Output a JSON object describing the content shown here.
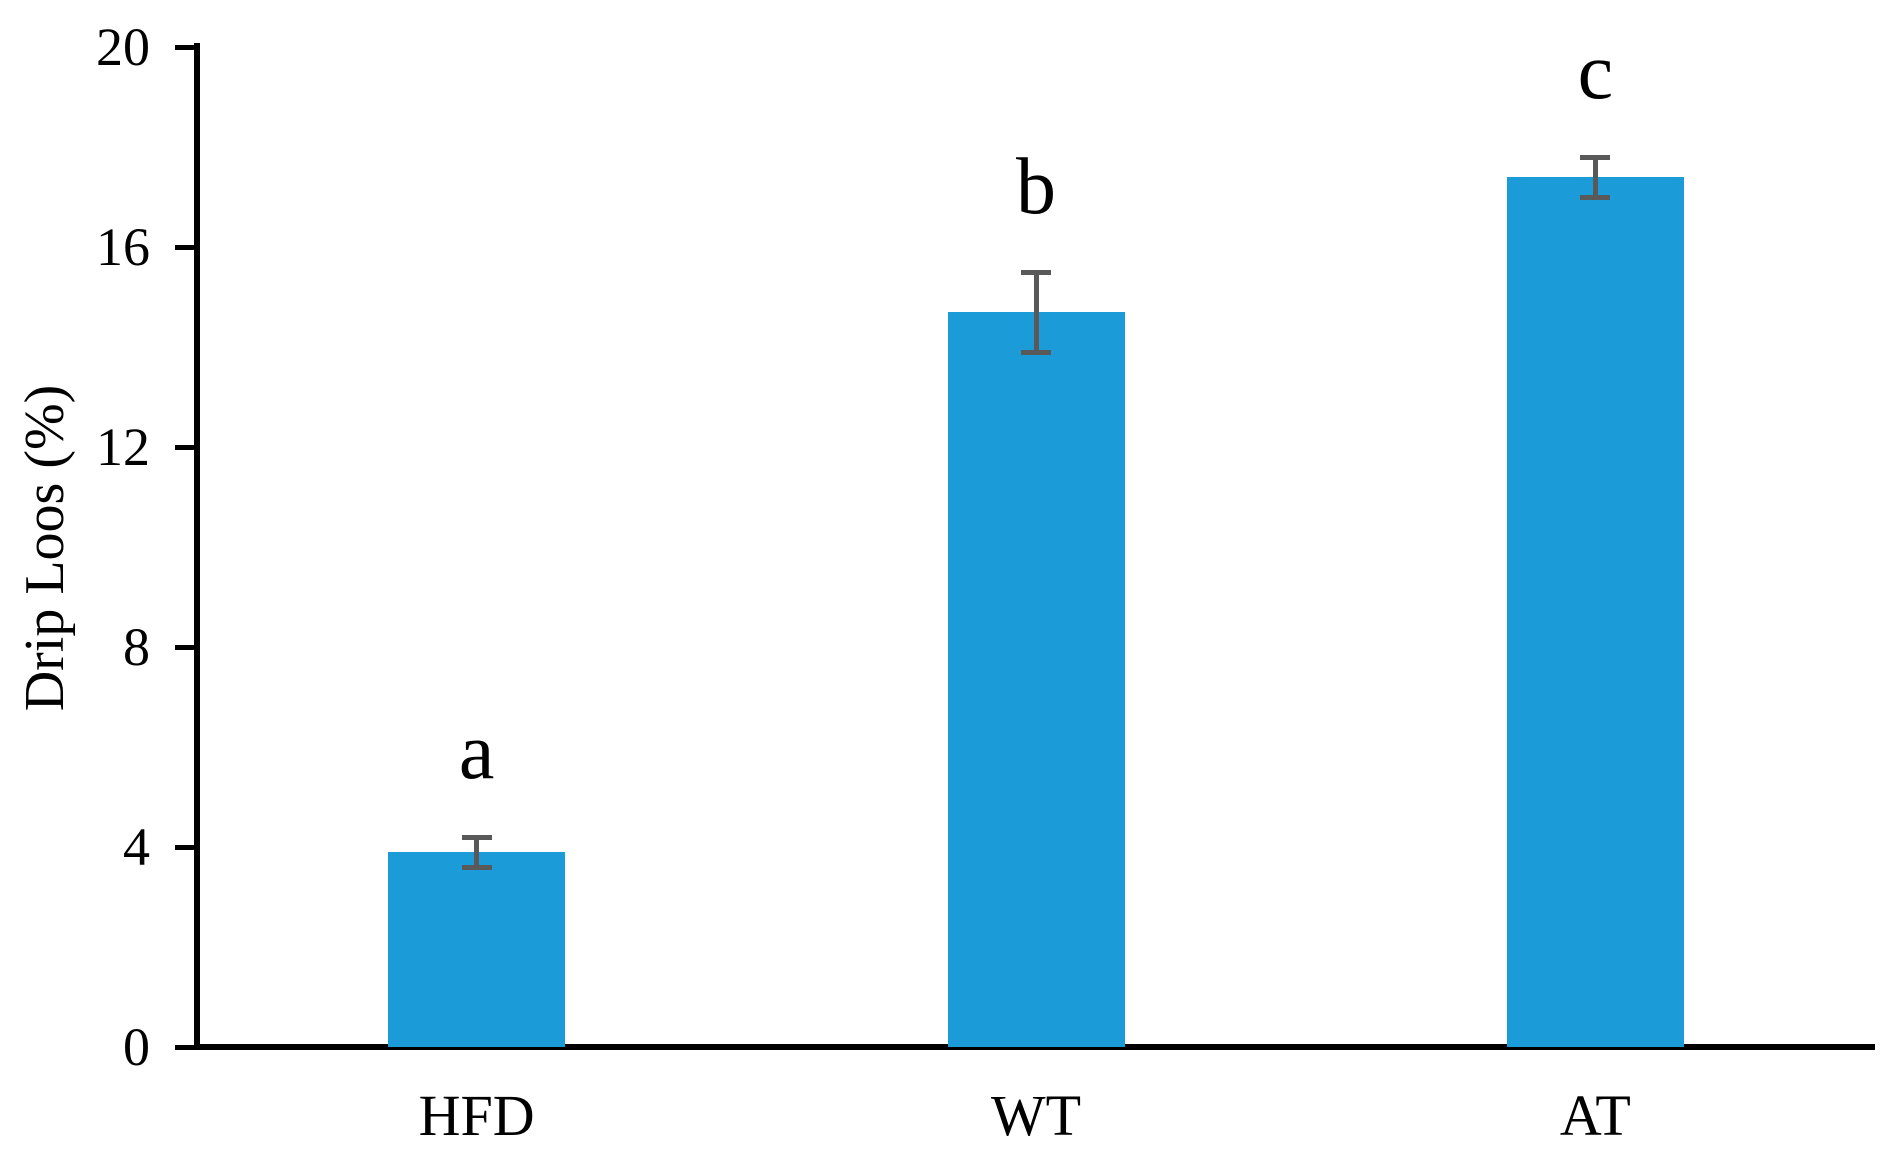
{
  "figure": {
    "background_color": "#ffffff"
  },
  "chart_data": {
    "type": "bar",
    "title": "",
    "categories": [
      "HFD",
      "WT",
      "AT"
    ],
    "values": [
      3.9,
      14.7,
      17.4
    ],
    "error_bars": [
      0.3,
      0.8,
      0.4
    ],
    "significance_letters": [
      "a",
      "b",
      "c"
    ],
    "xlabel": "",
    "ylabel": "Drip Loos (%)",
    "ylim": [
      0,
      20
    ],
    "yticks": [
      0,
      4,
      8,
      12,
      16,
      20
    ],
    "grid": false,
    "legend": false,
    "bar_color": "#1b9cd8",
    "error_bar_color": "#595959",
    "axis_color": "#000000",
    "text_color": "#000000"
  }
}
